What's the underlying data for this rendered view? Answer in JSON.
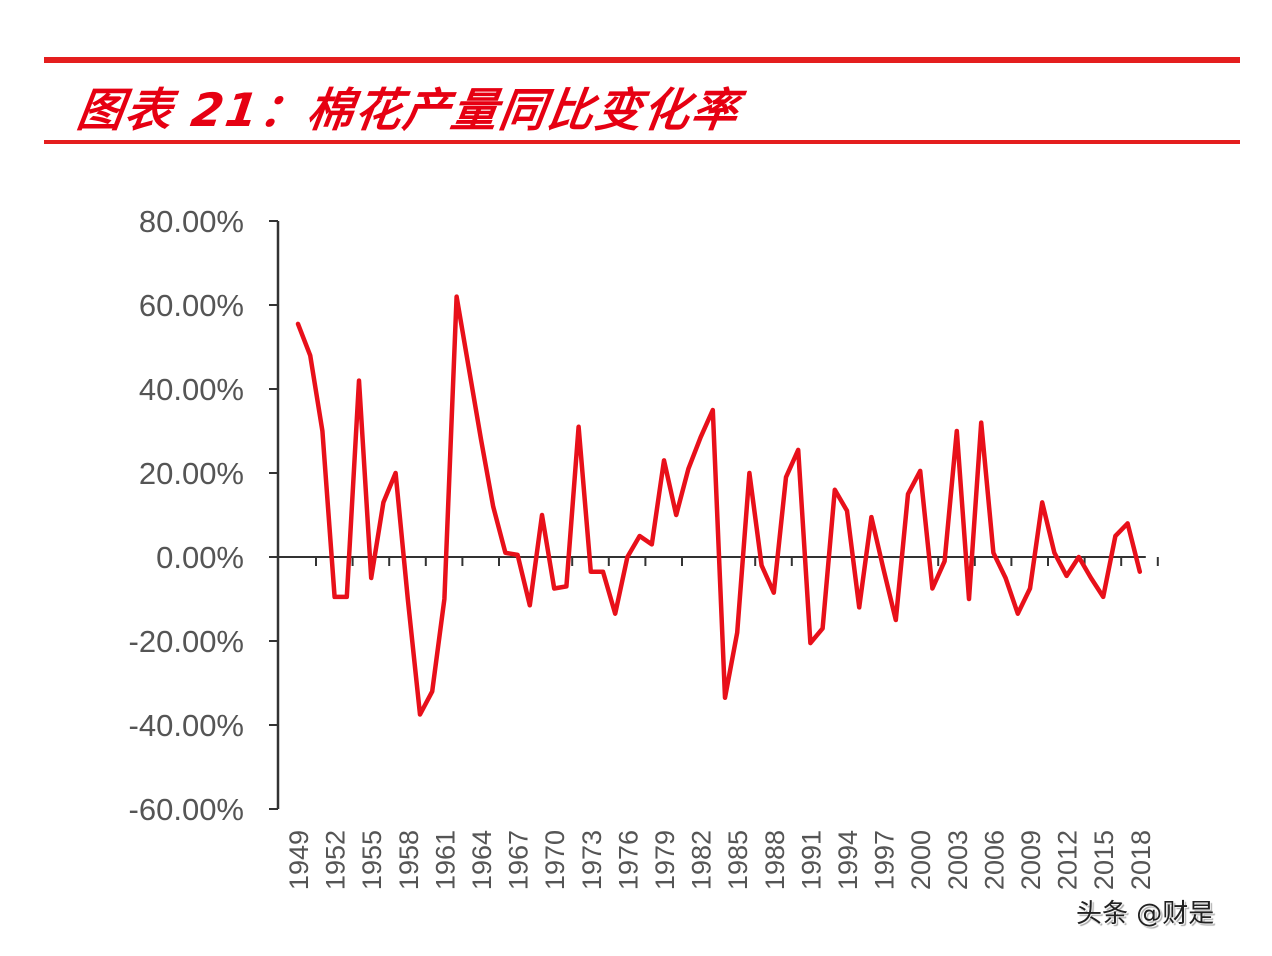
{
  "title": "图表 21：棉花产量同比变化率",
  "watermark": "头条 @财是",
  "colors": {
    "accent": "#e41e1e",
    "line": "#e8101a",
    "axis": "#333333",
    "text": "#555555"
  },
  "chart_data": {
    "type": "line",
    "title": "图表 21：棉花产量同比变化率",
    "xlabel": "",
    "ylabel": "",
    "ylim": [
      -0.6,
      0.8
    ],
    "grid": false,
    "legend": "none",
    "y_ticks": [
      "80.00%",
      "60.00%",
      "40.00%",
      "20.00%",
      "0.00%",
      "-20.00%",
      "-40.00%",
      "-60.00%"
    ],
    "x_tick_labels": [
      "1949",
      "1952",
      "1955",
      "1958",
      "1961",
      "1964",
      "1967",
      "1970",
      "1973",
      "1976",
      "1979",
      "1982",
      "1985",
      "1988",
      "1991",
      "1994",
      "1997",
      "2000",
      "2003",
      "2006",
      "2009",
      "2012",
      "2015",
      "2018"
    ],
    "x": [
      1949,
      1950,
      1951,
      1952,
      1953,
      1954,
      1955,
      1956,
      1957,
      1958,
      1959,
      1960,
      1961,
      1962,
      1963,
      1964,
      1965,
      1966,
      1967,
      1968,
      1969,
      1970,
      1971,
      1972,
      1973,
      1974,
      1975,
      1976,
      1977,
      1978,
      1979,
      1980,
      1981,
      1982,
      1983,
      1984,
      1985,
      1986,
      1987,
      1988,
      1989,
      1990,
      1991,
      1992,
      1993,
      1994,
      1995,
      1996,
      1997,
      1998,
      1999,
      2000,
      2001,
      2002,
      2003,
      2004,
      2005,
      2006,
      2007,
      2008,
      2009,
      2010,
      2011,
      2012,
      2013,
      2014,
      2015,
      2016,
      2017,
      2018
    ],
    "series": [
      {
        "name": "棉花产量同比变化率",
        "values": [
          0.555,
          0.48,
          0.3,
          -0.095,
          -0.095,
          0.42,
          -0.05,
          0.13,
          0.2,
          -0.1,
          -0.375,
          -0.32,
          -0.1,
          0.62,
          0.45,
          0.28,
          0.12,
          0.01,
          0.005,
          -0.115,
          0.1,
          -0.075,
          -0.07,
          0.31,
          -0.035,
          -0.035,
          -0.135,
          0.0,
          0.05,
          0.03,
          0.23,
          0.1,
          0.21,
          0.285,
          0.35,
          -0.335,
          -0.18,
          0.2,
          -0.02,
          -0.085,
          0.19,
          0.255,
          -0.205,
          -0.17,
          0.16,
          0.11,
          -0.12,
          0.095,
          -0.03,
          -0.15,
          0.15,
          0.205,
          -0.075,
          -0.01,
          0.3,
          -0.1,
          0.32,
          0.01,
          -0.05,
          -0.135,
          -0.075,
          0.13,
          0.01,
          -0.045,
          0.0,
          -0.05,
          -0.095,
          0.05,
          0.08,
          -0.035
        ]
      }
    ]
  }
}
